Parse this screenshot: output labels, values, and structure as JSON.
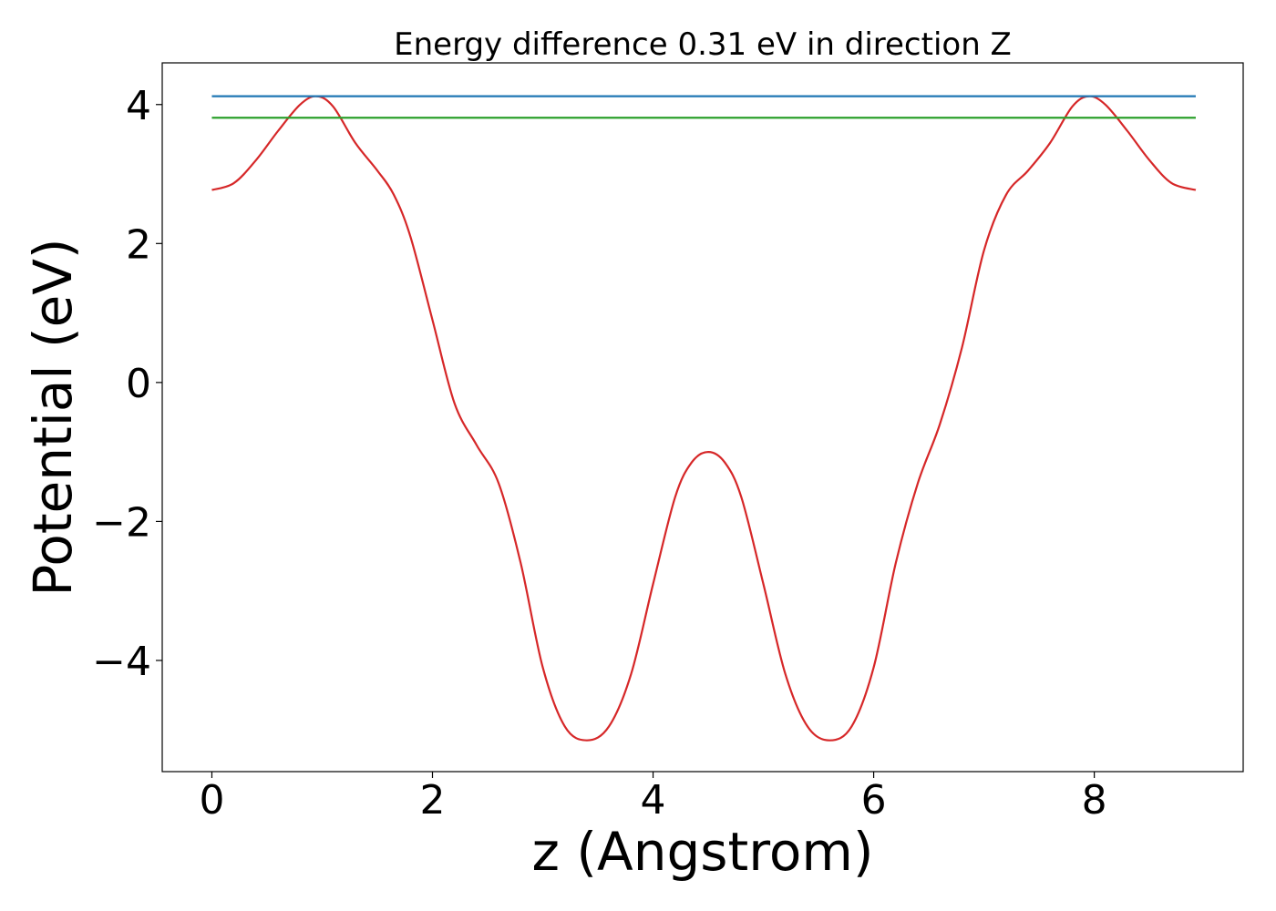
{
  "chart_data": {
    "type": "line",
    "title": "Energy difference 0.31 eV in direction Z",
    "xlabel": "z (Angstrom)",
    "ylabel": "Potential (eV)",
    "xlim": [
      -0.45,
      9.35
    ],
    "ylim": [
      -5.6,
      4.6
    ],
    "xticks": [
      0,
      2,
      4,
      6,
      8
    ],
    "xtick_labels": [
      "0",
      "2",
      "4",
      "6",
      "8"
    ],
    "yticks": [
      -4,
      -2,
      0,
      2,
      4
    ],
    "ytick_labels": [
      "−4",
      "−2",
      "0",
      "2",
      "4"
    ],
    "grid": false,
    "legend": "none",
    "series": [
      {
        "color": "#d62728",
        "x": [
          0.0,
          0.2,
          0.4,
          0.6,
          0.8,
          0.95,
          1.1,
          1.3,
          1.5,
          1.65,
          1.8,
          2.0,
          2.2,
          2.4,
          2.6,
          2.8,
          3.0,
          3.2,
          3.4,
          3.6,
          3.8,
          4.0,
          4.2,
          4.35,
          4.5,
          4.65,
          4.8,
          5.0,
          5.2,
          5.4,
          5.6,
          5.8,
          6.0,
          6.2,
          6.4,
          6.6,
          6.8,
          7.0,
          7.2,
          7.4,
          7.6,
          7.8,
          7.95,
          8.1,
          8.3,
          8.5,
          8.7,
          8.92
        ],
        "values": [
          2.77,
          2.87,
          3.2,
          3.62,
          4.0,
          4.12,
          3.97,
          3.45,
          3.05,
          2.7,
          2.1,
          0.9,
          -0.3,
          -0.9,
          -1.45,
          -2.6,
          -4.1,
          -4.95,
          -5.15,
          -4.95,
          -4.2,
          -2.9,
          -1.65,
          -1.15,
          -1.0,
          -1.15,
          -1.65,
          -2.9,
          -4.2,
          -4.95,
          -5.15,
          -4.95,
          -4.1,
          -2.6,
          -1.45,
          -0.6,
          0.5,
          1.9,
          2.7,
          3.05,
          3.45,
          3.97,
          4.12,
          4.0,
          3.62,
          3.2,
          2.87,
          2.77
        ]
      },
      {
        "color": "#1f77b4",
        "x": [
          0.0,
          8.92
        ],
        "values": [
          4.12,
          4.12
        ]
      },
      {
        "color": "#2ca02c",
        "x": [
          0.0,
          8.92
        ],
        "values": [
          3.81,
          3.81
        ]
      }
    ]
  }
}
